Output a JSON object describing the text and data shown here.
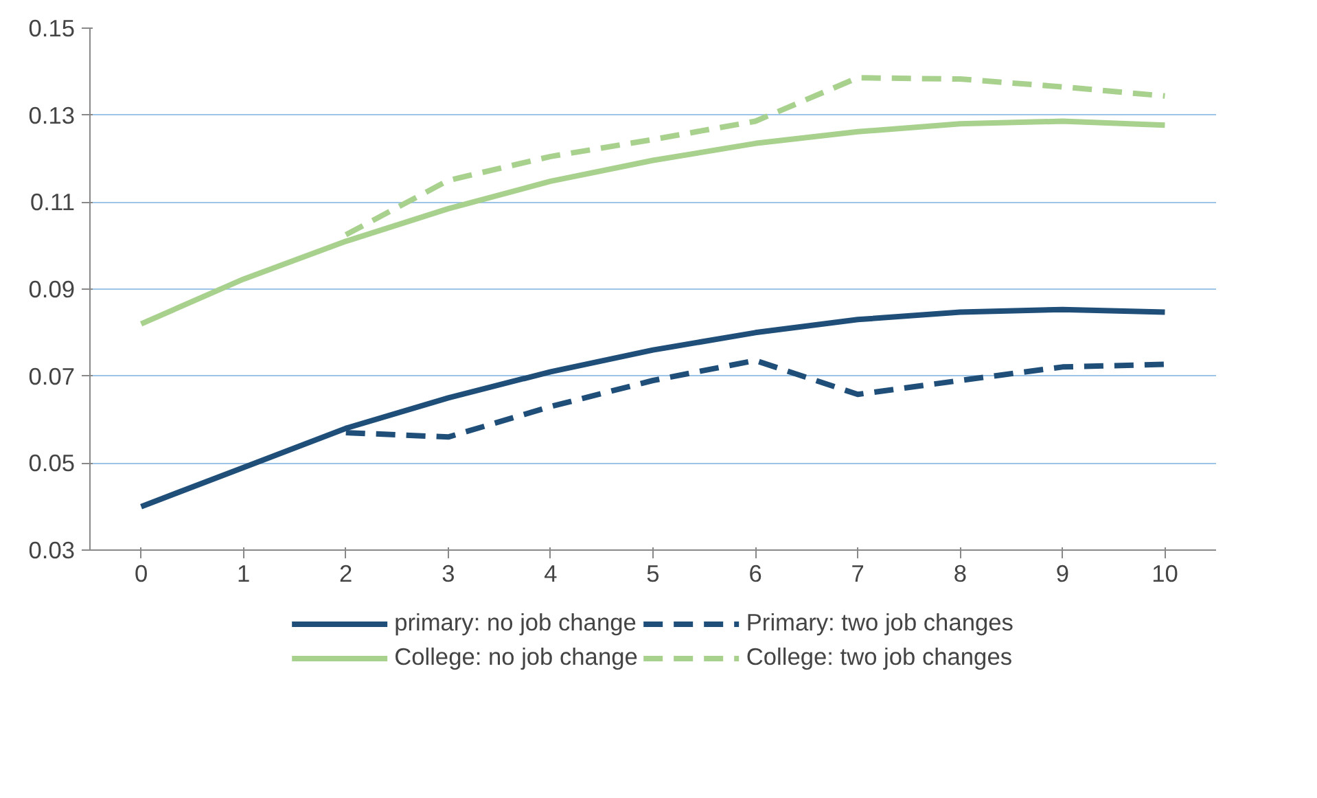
{
  "chart_data": {
    "type": "line",
    "x": [
      0,
      1,
      2,
      3,
      4,
      5,
      6,
      7,
      8,
      9,
      10
    ],
    "xlim": [
      -0.5,
      10.5
    ],
    "xticks": [
      0,
      1,
      2,
      3,
      4,
      5,
      6,
      7,
      8,
      9,
      10
    ],
    "ylim": [
      0.03,
      0.15
    ],
    "yticks": [
      0.03,
      0.05,
      0.07,
      0.09,
      0.11,
      0.13,
      0.15
    ],
    "grid": "y",
    "legend": "bottom",
    "series": [
      {
        "name": "primary: no job change",
        "color": "#1f4e79",
        "line_style": "solid",
        "values": [
          0.04,
          0.049,
          0.058,
          0.065,
          0.071,
          0.076,
          0.08,
          0.083,
          0.0847,
          0.0853,
          0.0847
        ]
      },
      {
        "name": "Primary: two job changes",
        "color": "#1f4e79",
        "line_style": "dashed",
        "values": [
          null,
          null,
          0.057,
          0.056,
          0.063,
          0.069,
          0.0736,
          0.0658,
          0.069,
          0.0721,
          0.0727
        ]
      },
      {
        "name": "College: no job change",
        "color": "#a9d18e",
        "line_style": "solid",
        "values": [
          0.082,
          0.0923,
          0.101,
          0.1085,
          0.1148,
          0.1196,
          0.1235,
          0.1262,
          0.128,
          0.1286,
          0.1277
        ]
      },
      {
        "name": "College: two job changes",
        "color": "#a9d18e",
        "line_style": "dashed",
        "values": [
          null,
          null,
          0.1025,
          0.115,
          0.1205,
          0.1244,
          0.1286,
          0.1386,
          0.1383,
          0.1365,
          0.1344
        ]
      }
    ]
  }
}
